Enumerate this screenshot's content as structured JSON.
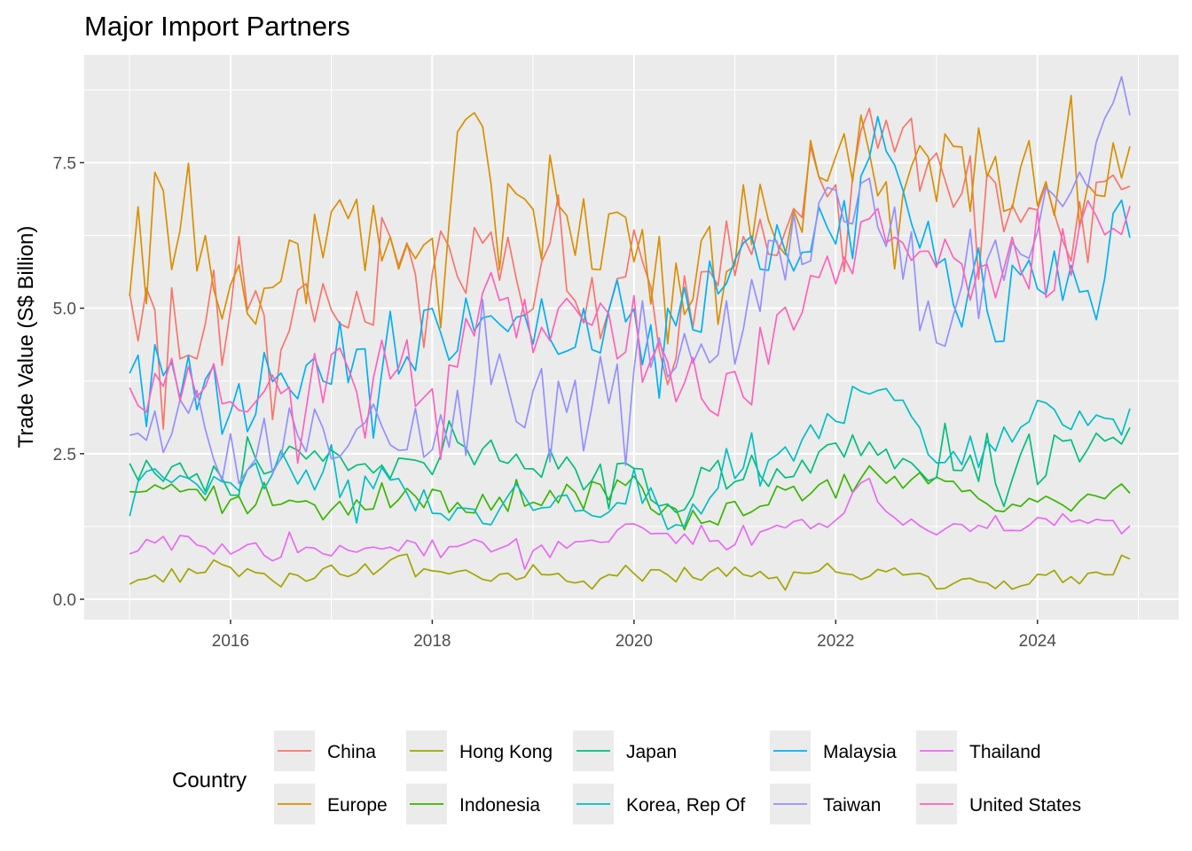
{
  "chart_data": {
    "type": "line",
    "title": "Major Import Partners",
    "xlabel": "",
    "ylabel": "Trade Value (S$ Billion)",
    "x_range": [
      2015.0,
      2024.9167
    ],
    "ylim": [
      -0.35,
      9.35
    ],
    "x_ticks": [
      2016,
      2018,
      2020,
      2022,
      2024
    ],
    "y_ticks": [
      0.0,
      2.5,
      5.0,
      7.5
    ],
    "y_tick_labels": [
      "0.0",
      "2.5",
      "5.0",
      "7.5"
    ],
    "grid": true,
    "legend": {
      "title": "Country",
      "position": "bottom"
    },
    "x_start": "2015-01",
    "frequency": "monthly",
    "series": [
      {
        "name": "China",
        "color": "#F8766D",
        "anchors": [
          [
            2015.0,
            4.9
          ],
          [
            2015.5,
            4.6
          ],
          [
            2016.0,
            4.7
          ],
          [
            2016.5,
            4.5
          ],
          [
            2017.0,
            5.5
          ],
          [
            2017.5,
            4.9
          ],
          [
            2018.0,
            5.9
          ],
          [
            2018.5,
            5.6
          ],
          [
            2019.0,
            5.6
          ],
          [
            2019.5,
            5.4
          ],
          [
            2020.0,
            5.9
          ],
          [
            2020.3,
            4.0
          ],
          [
            2020.5,
            5.1
          ],
          [
            2021.0,
            6.1
          ],
          [
            2021.5,
            6.1
          ],
          [
            2022.0,
            7.4
          ],
          [
            2022.5,
            7.9
          ],
          [
            2023.0,
            7.2
          ],
          [
            2023.5,
            7.0
          ],
          [
            2024.0,
            6.8
          ],
          [
            2024.5,
            6.4
          ],
          [
            2024.92,
            7.2
          ]
        ]
      },
      {
        "name": "Europe",
        "color": "#D89000",
        "anchors": [
          [
            2015.0,
            6.0
          ],
          [
            2015.25,
            6.8
          ],
          [
            2015.5,
            6.0
          ],
          [
            2016.0,
            5.6
          ],
          [
            2016.5,
            5.3
          ],
          [
            2017.0,
            6.4
          ],
          [
            2017.5,
            6.3
          ],
          [
            2018.0,
            6.5
          ],
          [
            2018.5,
            7.9
          ],
          [
            2019.0,
            7.4
          ],
          [
            2019.5,
            6.4
          ],
          [
            2020.0,
            6.6
          ],
          [
            2020.3,
            5.2
          ],
          [
            2020.5,
            5.3
          ],
          [
            2021.0,
            6.3
          ],
          [
            2021.25,
            7.1
          ],
          [
            2021.5,
            6.6
          ],
          [
            2022.0,
            7.5
          ],
          [
            2022.5,
            7.6
          ],
          [
            2023.0,
            7.4
          ],
          [
            2023.5,
            7.3
          ],
          [
            2024.0,
            7.5
          ],
          [
            2024.5,
            7.0
          ],
          [
            2024.92,
            7.4
          ]
        ]
      },
      {
        "name": "Hong Kong",
        "color": "#A3A500",
        "anchors": [
          [
            2015.0,
            0.3
          ],
          [
            2016.0,
            0.5
          ],
          [
            2016.5,
            0.3
          ],
          [
            2017.0,
            0.5
          ],
          [
            2017.5,
            0.6
          ],
          [
            2018.0,
            0.4
          ],
          [
            2019.0,
            0.4
          ],
          [
            2019.5,
            0.35
          ],
          [
            2020.0,
            0.4
          ],
          [
            2020.5,
            0.4
          ],
          [
            2021.0,
            0.5
          ],
          [
            2021.5,
            0.35
          ],
          [
            2022.0,
            0.4
          ],
          [
            2022.5,
            0.5
          ],
          [
            2023.0,
            0.25
          ],
          [
            2023.5,
            0.25
          ],
          [
            2024.0,
            0.3
          ],
          [
            2024.5,
            0.35
          ],
          [
            2024.92,
            0.75
          ]
        ]
      },
      {
        "name": "Indonesia",
        "color": "#39B600",
        "anchors": [
          [
            2015.0,
            1.8
          ],
          [
            2015.5,
            1.8
          ],
          [
            2016.0,
            1.6
          ],
          [
            2016.5,
            1.5
          ],
          [
            2017.0,
            1.6
          ],
          [
            2017.5,
            1.8
          ],
          [
            2018.0,
            1.7
          ],
          [
            2018.5,
            1.7
          ],
          [
            2019.0,
            1.7
          ],
          [
            2019.5,
            1.8
          ],
          [
            2020.0,
            1.9
          ],
          [
            2020.4,
            1.3
          ],
          [
            2021.0,
            1.5
          ],
          [
            2021.5,
            1.8
          ],
          [
            2022.0,
            1.9
          ],
          [
            2022.5,
            2.2
          ],
          [
            2023.0,
            1.9
          ],
          [
            2023.5,
            1.7
          ],
          [
            2024.0,
            1.6
          ],
          [
            2024.5,
            1.8
          ],
          [
            2024.92,
            2.0
          ]
        ]
      },
      {
        "name": "Japan",
        "color": "#00BF7D",
        "anchors": [
          [
            2015.0,
            2.1
          ],
          [
            2015.5,
            2.2
          ],
          [
            2016.0,
            1.9
          ],
          [
            2016.5,
            2.4
          ],
          [
            2017.0,
            2.6
          ],
          [
            2017.5,
            2.3
          ],
          [
            2018.0,
            2.4
          ],
          [
            2018.5,
            2.5
          ],
          [
            2019.0,
            2.4
          ],
          [
            2019.5,
            2.1
          ],
          [
            2020.0,
            2.3
          ],
          [
            2020.4,
            1.5
          ],
          [
            2020.7,
            2.1
          ],
          [
            2021.0,
            2.2
          ],
          [
            2021.5,
            2.3
          ],
          [
            2022.0,
            2.6
          ],
          [
            2022.5,
            2.4
          ],
          [
            2023.0,
            2.3
          ],
          [
            2023.5,
            2.2
          ],
          [
            2024.0,
            2.3
          ],
          [
            2024.5,
            2.6
          ],
          [
            2024.92,
            2.8
          ]
        ]
      },
      {
        "name": "Korea, Rep Of",
        "color": "#00BFC4",
        "anchors": [
          [
            2015.0,
            1.6
          ],
          [
            2015.25,
            2.3
          ],
          [
            2015.5,
            2.1
          ],
          [
            2016.0,
            1.8
          ],
          [
            2016.5,
            2.3
          ],
          [
            2017.0,
            2.0
          ],
          [
            2017.5,
            2.0
          ],
          [
            2018.0,
            1.6
          ],
          [
            2018.5,
            1.5
          ],
          [
            2019.0,
            1.8
          ],
          [
            2019.5,
            1.4
          ],
          [
            2020.0,
            2.0
          ],
          [
            2020.4,
            1.3
          ],
          [
            2020.7,
            1.8
          ],
          [
            2021.0,
            2.0
          ],
          [
            2021.5,
            2.5
          ],
          [
            2022.0,
            3.2
          ],
          [
            2022.5,
            3.8
          ],
          [
            2023.0,
            2.5
          ],
          [
            2023.5,
            2.6
          ],
          [
            2024.0,
            3.2
          ],
          [
            2024.5,
            3.0
          ],
          [
            2024.92,
            3.0
          ]
        ]
      },
      {
        "name": "Malaysia",
        "color": "#00B0F6",
        "anchors": [
          [
            2015.0,
            3.9
          ],
          [
            2015.5,
            3.9
          ],
          [
            2016.0,
            3.3
          ],
          [
            2016.5,
            3.8
          ],
          [
            2017.0,
            4.1
          ],
          [
            2017.5,
            4.4
          ],
          [
            2018.0,
            4.6
          ],
          [
            2018.5,
            4.8
          ],
          [
            2019.0,
            4.8
          ],
          [
            2019.5,
            4.6
          ],
          [
            2020.0,
            5.0
          ],
          [
            2020.3,
            3.6
          ],
          [
            2020.5,
            4.8
          ],
          [
            2021.0,
            5.6
          ],
          [
            2021.5,
            6.0
          ],
          [
            2022.0,
            6.6
          ],
          [
            2022.5,
            7.2
          ],
          [
            2023.0,
            5.6
          ],
          [
            2023.5,
            5.5
          ],
          [
            2024.0,
            5.4
          ],
          [
            2024.5,
            5.5
          ],
          [
            2024.92,
            6.6
          ]
        ]
      },
      {
        "name": "Taiwan",
        "color": "#9590FF",
        "anchors": [
          [
            2015.0,
            2.5
          ],
          [
            2015.5,
            2.9
          ],
          [
            2016.0,
            2.5
          ],
          [
            2016.5,
            2.7
          ],
          [
            2017.0,
            2.9
          ],
          [
            2017.5,
            3.2
          ],
          [
            2018.0,
            2.8
          ],
          [
            2018.5,
            3.8
          ],
          [
            2019.0,
            3.4
          ],
          [
            2019.5,
            3.8
          ],
          [
            2020.0,
            3.6
          ],
          [
            2020.5,
            4.3
          ],
          [
            2021.0,
            4.9
          ],
          [
            2021.5,
            6.0
          ],
          [
            2022.0,
            6.7
          ],
          [
            2022.5,
            6.8
          ],
          [
            2023.0,
            4.7
          ],
          [
            2023.5,
            5.5
          ],
          [
            2024.0,
            6.5
          ],
          [
            2024.5,
            7.0
          ],
          [
            2024.92,
            8.8
          ]
        ]
      },
      {
        "name": "Thailand",
        "color": "#E76BF3",
        "anchors": [
          [
            2015.0,
            0.9
          ],
          [
            2015.5,
            1.0
          ],
          [
            2016.0,
            0.8
          ],
          [
            2016.5,
            0.8
          ],
          [
            2017.0,
            0.8
          ],
          [
            2017.5,
            0.8
          ],
          [
            2018.0,
            0.9
          ],
          [
            2018.5,
            0.9
          ],
          [
            2019.0,
            0.8
          ],
          [
            2019.5,
            1.0
          ],
          [
            2020.0,
            1.2
          ],
          [
            2020.5,
            1.0
          ],
          [
            2021.0,
            0.9
          ],
          [
            2021.5,
            1.2
          ],
          [
            2022.0,
            1.3
          ],
          [
            2022.3,
            2.1
          ],
          [
            2022.5,
            1.4
          ],
          [
            2023.0,
            1.2
          ],
          [
            2023.5,
            1.3
          ],
          [
            2024.0,
            1.3
          ],
          [
            2024.5,
            1.25
          ],
          [
            2024.92,
            1.4
          ]
        ]
      },
      {
        "name": "United States",
        "color": "#FF62BC",
        "anchors": [
          [
            2015.0,
            3.8
          ],
          [
            2015.5,
            3.8
          ],
          [
            2016.0,
            3.3
          ],
          [
            2016.5,
            3.5
          ],
          [
            2017.0,
            3.8
          ],
          [
            2017.5,
            4.0
          ],
          [
            2018.0,
            3.7
          ],
          [
            2018.5,
            5.0
          ],
          [
            2019.0,
            4.8
          ],
          [
            2019.5,
            4.9
          ],
          [
            2020.0,
            4.4
          ],
          [
            2020.4,
            3.7
          ],
          [
            2021.0,
            3.7
          ],
          [
            2021.5,
            4.8
          ],
          [
            2022.0,
            5.8
          ],
          [
            2022.5,
            6.4
          ],
          [
            2023.0,
            5.8
          ],
          [
            2023.5,
            5.7
          ],
          [
            2024.0,
            5.6
          ],
          [
            2024.5,
            6.3
          ],
          [
            2024.92,
            6.6
          ]
        ]
      }
    ]
  }
}
